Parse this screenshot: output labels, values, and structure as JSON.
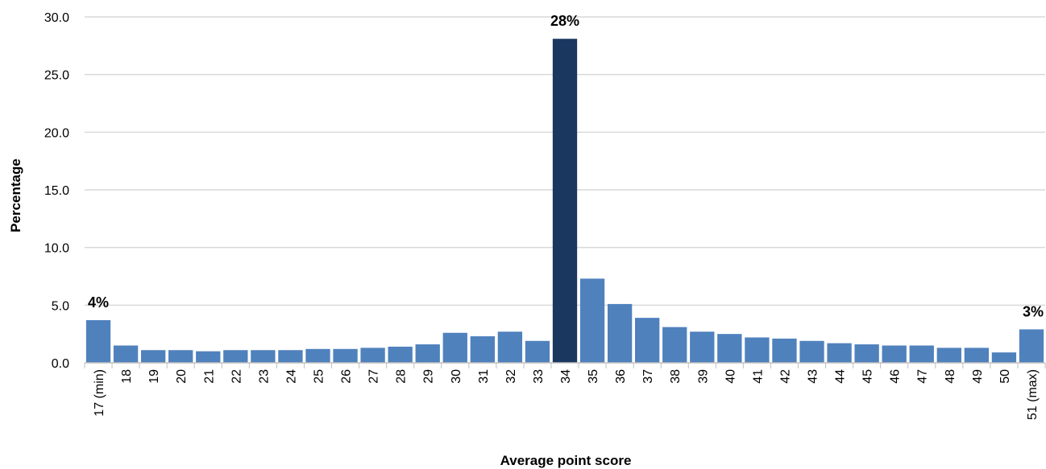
{
  "chart_data": {
    "type": "bar",
    "xlabel": "Average point score",
    "ylabel": "Percentage",
    "ylim": [
      0,
      30
    ],
    "yticks": [
      "0.0",
      "5.0",
      "10.0",
      "15.0",
      "20.0",
      "25.0",
      "30.0"
    ],
    "grid": true,
    "legend": "none",
    "categories": [
      "17 (min)",
      "18",
      "19",
      "20",
      "21",
      "22",
      "23",
      "24",
      "25",
      "26",
      "27",
      "28",
      "29",
      "30",
      "31",
      "32",
      "33",
      "34",
      "35",
      "36",
      "37",
      "38",
      "39",
      "40",
      "41",
      "42",
      "43",
      "44",
      "45",
      "46",
      "47",
      "48",
      "49",
      "50",
      "51 (max)"
    ],
    "values": [
      3.7,
      1.5,
      1.1,
      1.1,
      1.0,
      1.1,
      1.1,
      1.1,
      1.2,
      1.2,
      1.3,
      1.4,
      1.6,
      2.6,
      2.3,
      2.7,
      1.9,
      28.1,
      7.3,
      5.1,
      3.9,
      3.1,
      2.7,
      2.5,
      2.2,
      2.1,
      1.9,
      1.7,
      1.6,
      1.5,
      1.5,
      1.3,
      1.3,
      0.9,
      2.9
    ],
    "highlight_index": 17,
    "colors": {
      "bar": "#4f81bd",
      "highlight": "#1a3760",
      "grid": "#d9d9d9",
      "axis": "#bfbfbf"
    },
    "data_labels": [
      {
        "index": 0,
        "text": "4%"
      },
      {
        "index": 17,
        "text": "28%"
      },
      {
        "index": 34,
        "text": "3%"
      }
    ]
  }
}
